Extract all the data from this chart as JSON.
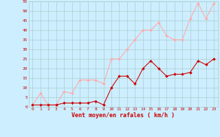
{
  "x": [
    0,
    1,
    2,
    3,
    4,
    5,
    6,
    7,
    8,
    9,
    10,
    11,
    12,
    13,
    14,
    15,
    16,
    17,
    18,
    19,
    20,
    21,
    22,
    23
  ],
  "avg_wind": [
    1,
    1,
    1,
    1,
    2,
    2,
    2,
    2,
    3,
    1,
    10,
    16,
    16,
    12,
    20,
    24,
    20,
    16,
    17,
    17,
    18,
    24,
    22,
    25
  ],
  "gust_wind": [
    1,
    7,
    1,
    1,
    8,
    7,
    14,
    14,
    14,
    12,
    25,
    25,
    30,
    35,
    40,
    40,
    44,
    37,
    35,
    35,
    46,
    54,
    46,
    54
  ],
  "avg_color": "#cc0000",
  "gust_color": "#ffaaaa",
  "bg_color": "#cceeff",
  "grid_color": "#aacccc",
  "xlabel": "Vent moyen/en rafales ( km/h )",
  "xlabel_color": "#cc0000",
  "tick_color": "#cc0000",
  "ylim": [
    0,
    55
  ],
  "yticks": [
    0,
    5,
    10,
    15,
    20,
    25,
    30,
    35,
    40,
    45,
    50,
    55
  ],
  "ytick_labels": [
    "0",
    "5",
    "10",
    "15",
    "20",
    "25",
    "30",
    "35",
    "40",
    "45",
    "50",
    "55"
  ]
}
